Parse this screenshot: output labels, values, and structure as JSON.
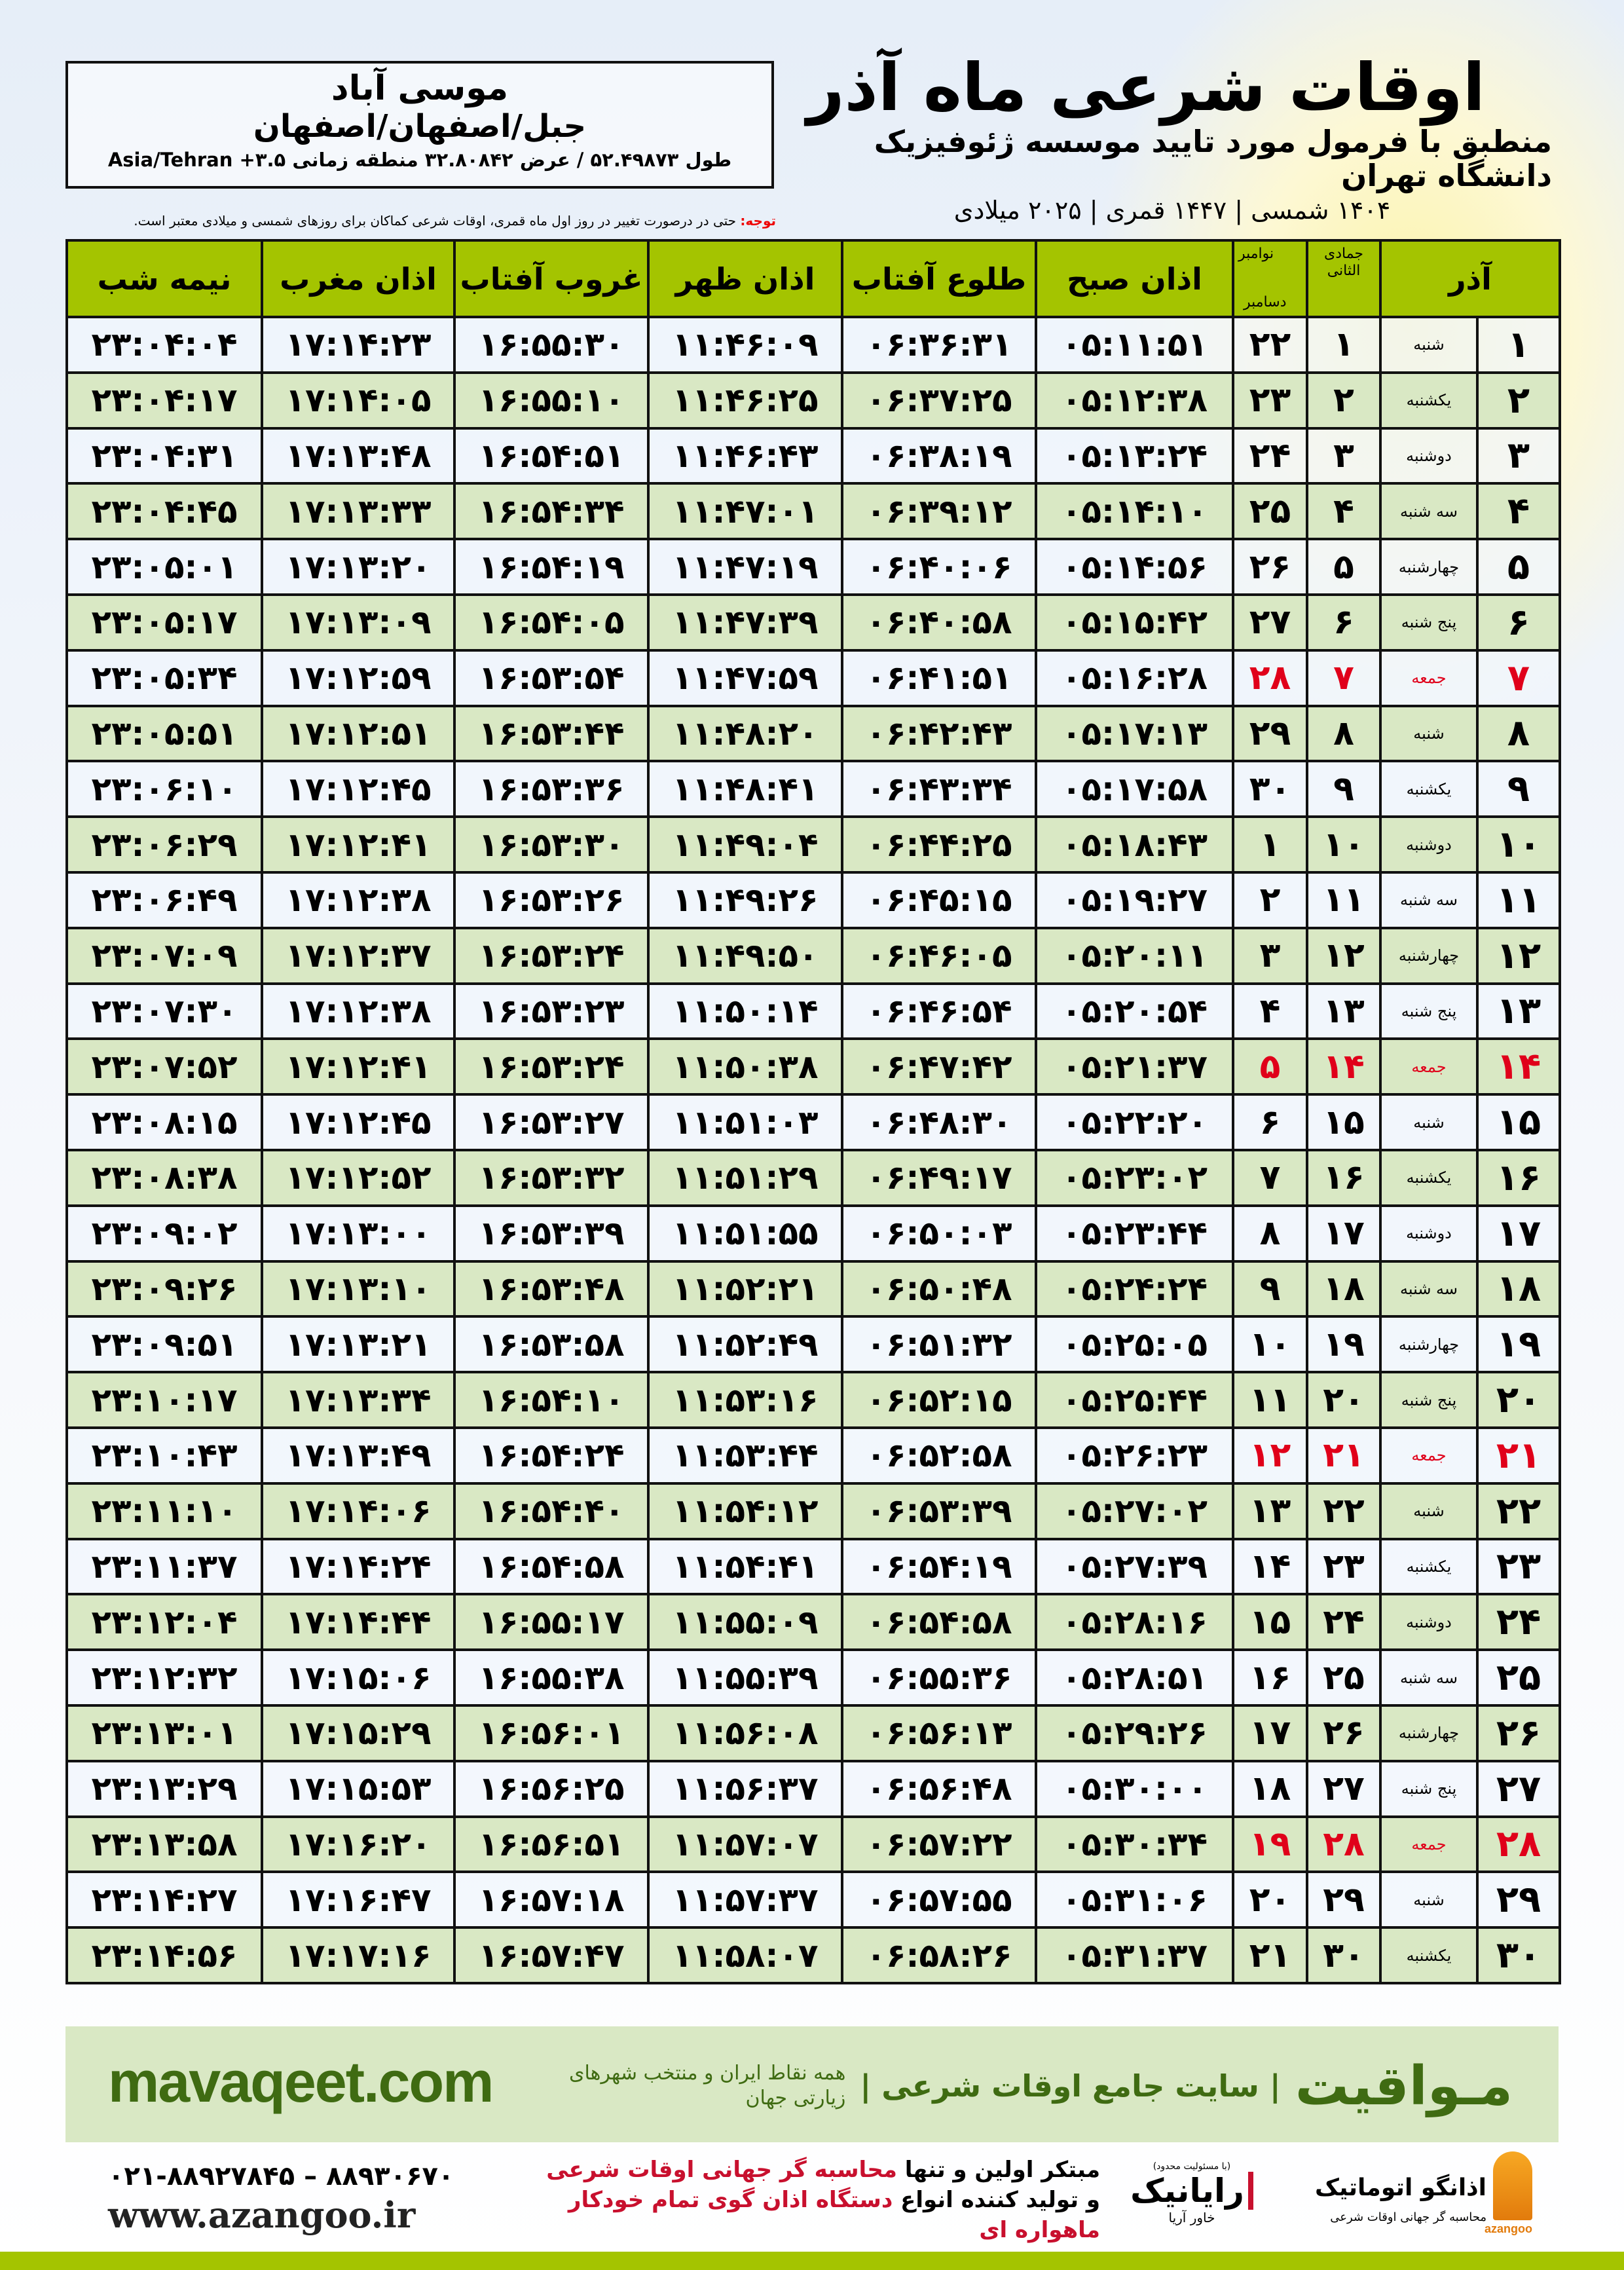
{
  "header": {
    "title": "اوقات شرعی ماه آذر",
    "subtitle": "منطبق با فرمول مورد تایید موسسه ژئوفیزیک دانشگاه تهران",
    "dates": "۱۴۰۴ شمسی | ۱۴۴۷ قمری | ۲۰۲۵ میلادی"
  },
  "location": {
    "name": "موسی آباد",
    "path": "جبل/اصفهان/اصفهان",
    "coords": "طول ۵۲.۴۹۸۷۳ / عرض ۳۲.۸۰۸۴۲ منطقه زمانی ۳.۵+ Asia/Tehran"
  },
  "note": {
    "label": "توجه:",
    "text": " حتی در درصورت تغییر در روز اول ماه قمری، اوقات شرعی کماکان برای روزهای شمسی و میلادی معتبر است."
  },
  "table": {
    "headers": {
      "shamsi": "آذر",
      "qamari": "جمادی الثانی",
      "miladi_1": "نوامبر",
      "miladi_2": "دسامبر",
      "sobh": "اذان صبح",
      "tolu": "طلوع آفتاب",
      "zohr": "اذان ظهر",
      "ghroob": "غروب آفتاب",
      "maghrib": "اذان مغرب",
      "nimeh": "نیمه شب"
    },
    "friday_color": "#e0001a",
    "header_color": "#a4c400",
    "rows": [
      [
        "۱",
        "شنبه",
        "۱",
        "۲۲",
        "۰۵:۱۱:۵۱",
        "۰۶:۳۶:۳۱",
        "۱۱:۴۶:۰۹",
        "۱۶:۵۵:۳۰",
        "۱۷:۱۴:۲۳",
        "۲۳:۰۴:۰۴"
      ],
      [
        "۲",
        "یکشنبه",
        "۲",
        "۲۳",
        "۰۵:۱۲:۳۸",
        "۰۶:۳۷:۲۵",
        "۱۱:۴۶:۲۵",
        "۱۶:۵۵:۱۰",
        "۱۷:۱۴:۰۵",
        "۲۳:۰۴:۱۷"
      ],
      [
        "۳",
        "دوشنبه",
        "۳",
        "۲۴",
        "۰۵:۱۳:۲۴",
        "۰۶:۳۸:۱۹",
        "۱۱:۴۶:۴۳",
        "۱۶:۵۴:۵۱",
        "۱۷:۱۳:۴۸",
        "۲۳:۰۴:۳۱"
      ],
      [
        "۴",
        "سه شنبه",
        "۴",
        "۲۵",
        "۰۵:۱۴:۱۰",
        "۰۶:۳۹:۱۲",
        "۱۱:۴۷:۰۱",
        "۱۶:۵۴:۳۴",
        "۱۷:۱۳:۳۳",
        "۲۳:۰۴:۴۵"
      ],
      [
        "۵",
        "چهارشنبه",
        "۵",
        "۲۶",
        "۰۵:۱۴:۵۶",
        "۰۶:۴۰:۰۶",
        "۱۱:۴۷:۱۹",
        "۱۶:۵۴:۱۹",
        "۱۷:۱۳:۲۰",
        "۲۳:۰۵:۰۱"
      ],
      [
        "۶",
        "پنج شنبه",
        "۶",
        "۲۷",
        "۰۵:۱۵:۴۲",
        "۰۶:۴۰:۵۸",
        "۱۱:۴۷:۳۹",
        "۱۶:۵۴:۰۵",
        "۱۷:۱۳:۰۹",
        "۲۳:۰۵:۱۷"
      ],
      [
        "۷",
        "جمعه",
        "۷",
        "۲۸",
        "۰۵:۱۶:۲۸",
        "۰۶:۴۱:۵۱",
        "۱۱:۴۷:۵۹",
        "۱۶:۵۳:۵۴",
        "۱۷:۱۲:۵۹",
        "۲۳:۰۵:۳۴"
      ],
      [
        "۸",
        "شنبه",
        "۸",
        "۲۹",
        "۰۵:۱۷:۱۳",
        "۰۶:۴۲:۴۳",
        "۱۱:۴۸:۲۰",
        "۱۶:۵۳:۴۴",
        "۱۷:۱۲:۵۱",
        "۲۳:۰۵:۵۱"
      ],
      [
        "۹",
        "یکشنبه",
        "۹",
        "۳۰",
        "۰۵:۱۷:۵۸",
        "۰۶:۴۳:۳۴",
        "۱۱:۴۸:۴۱",
        "۱۶:۵۳:۳۶",
        "۱۷:۱۲:۴۵",
        "۲۳:۰۶:۱۰"
      ],
      [
        "۱۰",
        "دوشنبه",
        "۱۰",
        "۱",
        "۰۵:۱۸:۴۳",
        "۰۶:۴۴:۲۵",
        "۱۱:۴۹:۰۴",
        "۱۶:۵۳:۳۰",
        "۱۷:۱۲:۴۱",
        "۲۳:۰۶:۲۹"
      ],
      [
        "۱۱",
        "سه شنبه",
        "۱۱",
        "۲",
        "۰۵:۱۹:۲۷",
        "۰۶:۴۵:۱۵",
        "۱۱:۴۹:۲۶",
        "۱۶:۵۳:۲۶",
        "۱۷:۱۲:۳۸",
        "۲۳:۰۶:۴۹"
      ],
      [
        "۱۲",
        "چهارشنبه",
        "۱۲",
        "۳",
        "۰۵:۲۰:۱۱",
        "۰۶:۴۶:۰۵",
        "۱۱:۴۹:۵۰",
        "۱۶:۵۳:۲۴",
        "۱۷:۱۲:۳۷",
        "۲۳:۰۷:۰۹"
      ],
      [
        "۱۳",
        "پنج شنبه",
        "۱۳",
        "۴",
        "۰۵:۲۰:۵۴",
        "۰۶:۴۶:۵۴",
        "۱۱:۵۰:۱۴",
        "۱۶:۵۳:۲۳",
        "۱۷:۱۲:۳۸",
        "۲۳:۰۷:۳۰"
      ],
      [
        "۱۴",
        "جمعه",
        "۱۴",
        "۵",
        "۰۵:۲۱:۳۷",
        "۰۶:۴۷:۴۲",
        "۱۱:۵۰:۳۸",
        "۱۶:۵۳:۲۴",
        "۱۷:۱۲:۴۱",
        "۲۳:۰۷:۵۲"
      ],
      [
        "۱۵",
        "شنبه",
        "۱۵",
        "۶",
        "۰۵:۲۲:۲۰",
        "۰۶:۴۸:۳۰",
        "۱۱:۵۱:۰۳",
        "۱۶:۵۳:۲۷",
        "۱۷:۱۲:۴۵",
        "۲۳:۰۸:۱۵"
      ],
      [
        "۱۶",
        "یکشنبه",
        "۱۶",
        "۷",
        "۰۵:۲۳:۰۲",
        "۰۶:۴۹:۱۷",
        "۱۱:۵۱:۲۹",
        "۱۶:۵۳:۳۲",
        "۱۷:۱۲:۵۲",
        "۲۳:۰۸:۳۸"
      ],
      [
        "۱۷",
        "دوشنبه",
        "۱۷",
        "۸",
        "۰۵:۲۳:۴۴",
        "۰۶:۵۰:۰۳",
        "۱۱:۵۱:۵۵",
        "۱۶:۵۳:۳۹",
        "۱۷:۱۳:۰۰",
        "۲۳:۰۹:۰۲"
      ],
      [
        "۱۸",
        "سه شنبه",
        "۱۸",
        "۹",
        "۰۵:۲۴:۲۴",
        "۰۶:۵۰:۴۸",
        "۱۱:۵۲:۲۱",
        "۱۶:۵۳:۴۸",
        "۱۷:۱۳:۱۰",
        "۲۳:۰۹:۲۶"
      ],
      [
        "۱۹",
        "چهارشنبه",
        "۱۹",
        "۱۰",
        "۰۵:۲۵:۰۵",
        "۰۶:۵۱:۳۲",
        "۱۱:۵۲:۴۹",
        "۱۶:۵۳:۵۸",
        "۱۷:۱۳:۲۱",
        "۲۳:۰۹:۵۱"
      ],
      [
        "۲۰",
        "پنج شنبه",
        "۲۰",
        "۱۱",
        "۰۵:۲۵:۴۴",
        "۰۶:۵۲:۱۵",
        "۱۱:۵۳:۱۶",
        "۱۶:۵۴:۱۰",
        "۱۷:۱۳:۳۴",
        "۲۳:۱۰:۱۷"
      ],
      [
        "۲۱",
        "جمعه",
        "۲۱",
        "۱۲",
        "۰۵:۲۶:۲۳",
        "۰۶:۵۲:۵۸",
        "۱۱:۵۳:۴۴",
        "۱۶:۵۴:۲۴",
        "۱۷:۱۳:۴۹",
        "۲۳:۱۰:۴۳"
      ],
      [
        "۲۲",
        "شنبه",
        "۲۲",
        "۱۳",
        "۰۵:۲۷:۰۲",
        "۰۶:۵۳:۳۹",
        "۱۱:۵۴:۱۲",
        "۱۶:۵۴:۴۰",
        "۱۷:۱۴:۰۶",
        "۲۳:۱۱:۱۰"
      ],
      [
        "۲۳",
        "یکشنبه",
        "۲۳",
        "۱۴",
        "۰۵:۲۷:۳۹",
        "۰۶:۵۴:۱۹",
        "۱۱:۵۴:۴۱",
        "۱۶:۵۴:۵۸",
        "۱۷:۱۴:۲۴",
        "۲۳:۱۱:۳۷"
      ],
      [
        "۲۴",
        "دوشنبه",
        "۲۴",
        "۱۵",
        "۰۵:۲۸:۱۶",
        "۰۶:۵۴:۵۸",
        "۱۱:۵۵:۰۹",
        "۱۶:۵۵:۱۷",
        "۱۷:۱۴:۴۴",
        "۲۳:۱۲:۰۴"
      ],
      [
        "۲۵",
        "سه شنبه",
        "۲۵",
        "۱۶",
        "۰۵:۲۸:۵۱",
        "۰۶:۵۵:۳۶",
        "۱۱:۵۵:۳۹",
        "۱۶:۵۵:۳۸",
        "۱۷:۱۵:۰۶",
        "۲۳:۱۲:۳۲"
      ],
      [
        "۲۶",
        "چهارشنبه",
        "۲۶",
        "۱۷",
        "۰۵:۲۹:۲۶",
        "۰۶:۵۶:۱۳",
        "۱۱:۵۶:۰۸",
        "۱۶:۵۶:۰۱",
        "۱۷:۱۵:۲۹",
        "۲۳:۱۳:۰۱"
      ],
      [
        "۲۷",
        "پنج شنبه",
        "۲۷",
        "۱۸",
        "۰۵:۳۰:۰۰",
        "۰۶:۵۶:۴۸",
        "۱۱:۵۶:۳۷",
        "۱۶:۵۶:۲۵",
        "۱۷:۱۵:۵۳",
        "۲۳:۱۳:۲۹"
      ],
      [
        "۲۸",
        "جمعه",
        "۲۸",
        "۱۹",
        "۰۵:۳۰:۳۴",
        "۰۶:۵۷:۲۲",
        "۱۱:۵۷:۰۷",
        "۱۶:۵۶:۵۱",
        "۱۷:۱۶:۲۰",
        "۲۳:۱۳:۵۸"
      ],
      [
        "۲۹",
        "شنبه",
        "۲۹",
        "۲۰",
        "۰۵:۳۱:۰۶",
        "۰۶:۵۷:۵۵",
        "۱۱:۵۷:۳۷",
        "۱۶:۵۷:۱۸",
        "۱۷:۱۶:۴۷",
        "۲۳:۱۴:۲۷"
      ],
      [
        "۳۰",
        "یکشنبه",
        "۳۰",
        "۲۱",
        "۰۵:۳۱:۳۷",
        "۰۶:۵۸:۲۶",
        "۱۱:۵۸:۰۷",
        "۱۶:۵۷:۴۷",
        "۱۷:۱۷:۱۶",
        "۲۳:۱۴:۵۶"
      ]
    ]
  },
  "banner": {
    "brand": "مـواقیت",
    "slogan": "| سایت جامع اوقات شرعی |",
    "tagline": "همه نقاط ایران و منتخب شهرهای زیارتی جهان",
    "site": "mavaqeet.com",
    "color": "#3f6b12",
    "background": "#d9e8c4"
  },
  "footer": {
    "phone": "۰۲۱-۸۸۹۲۷۸۴۵ – ۸۸۹۳۰۶۷۰",
    "web": "www.azangoo.ir",
    "line1_a": "مبتکر اولین و تنها ",
    "line1_b": "محاسبه گر جهانی اوقات شرعی",
    "line2_a": "و تولید کننده انواع ",
    "line2_b": "دستگاه اذان گوی تمام خودکار ماهواره ای",
    "rayanik": {
      "name": "رایانیک",
      "sub": "خاور آریا",
      "note": "(با مسئولیت محدود)"
    },
    "azangoo": {
      "name": "اذانگو اتوماتیک",
      "sub": "محاسبه گر جهانی اوقات شرعی",
      "latin": "azangoo"
    }
  }
}
